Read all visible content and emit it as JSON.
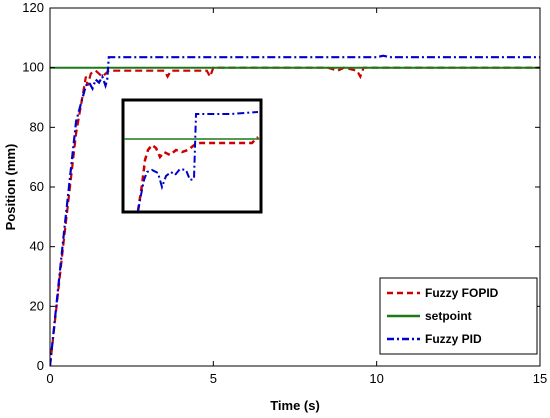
{
  "chart_data": {
    "type": "line",
    "title": "",
    "xlabel": "Time (s)",
    "ylabel": "Position (mm)",
    "xlim": [
      0,
      15
    ],
    "ylim": [
      0,
      120
    ],
    "xticks": [
      0,
      5,
      10,
      15
    ],
    "yticks": [
      0,
      20,
      40,
      60,
      80,
      100,
      120
    ],
    "grid": false,
    "legend_position": "bottom-right",
    "series": [
      {
        "name": "Fuzzy FOPID",
        "color": "#cc0000",
        "style": "dashed",
        "x": [
          0,
          0.4,
          0.8,
          1.1,
          1.15,
          1.25,
          1.4,
          1.6,
          1.8,
          2.2,
          3.0,
          3.5,
          3.6,
          3.7,
          3.9,
          4.8,
          4.9,
          5.0,
          6.0,
          7.0,
          8.5,
          8.8,
          9.0,
          9.4,
          9.5,
          9.6,
          10.0,
          12.0,
          15.0
        ],
        "y": [
          0,
          40,
          78,
          97,
          94,
          98,
          99,
          97,
          99,
          99,
          99,
          99,
          97,
          99,
          99,
          99,
          97,
          100,
          100,
          100,
          100,
          99,
          100,
          99,
          97,
          100,
          100,
          100,
          100
        ]
      },
      {
        "name": "setpoint",
        "color": "#1a7a1a",
        "style": "solid",
        "x": [
          0,
          15
        ],
        "y": [
          100,
          100
        ]
      },
      {
        "name": "Fuzzy PID",
        "color": "#0000cc",
        "style": "dashdot",
        "x": [
          0,
          0.4,
          0.8,
          1.1,
          1.2,
          1.3,
          1.4,
          1.5,
          1.6,
          1.7,
          1.75,
          1.8,
          2.5,
          4.0,
          6.0,
          8.0,
          10.0,
          10.2,
          10.4,
          12.0,
          15.0
        ],
        "y": [
          0,
          42,
          82,
          94,
          95,
          93,
          96,
          95,
          97,
          94,
          96,
          103.5,
          103.5,
          103.5,
          103.5,
          103.5,
          103.5,
          104,
          103.5,
          103.5,
          103.5
        ]
      }
    ]
  }
}
